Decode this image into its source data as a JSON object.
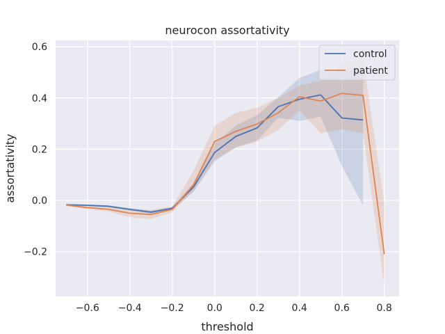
{
  "chart_data": {
    "type": "line",
    "title": "neurocon assortativity",
    "xlabel": "threshold",
    "ylabel": "assortativity",
    "xlim": [
      -0.75,
      0.87
    ],
    "ylim": [
      -0.375,
      0.625
    ],
    "xticks": [
      -0.6,
      -0.4,
      -0.2,
      0.0,
      0.2,
      0.4,
      0.6,
      0.8
    ],
    "xtick_labels": [
      "−0.6",
      "−0.4",
      "−0.2",
      "0.0",
      "0.2",
      "0.4",
      "0.6",
      "0.8"
    ],
    "yticks": [
      -0.2,
      0.0,
      0.2,
      0.4,
      0.6
    ],
    "ytick_labels": [
      "−0.2",
      "0.0",
      "0.2",
      "0.4",
      "0.6"
    ],
    "grid": true,
    "legend_position": "top-right",
    "series": [
      {
        "name": "control",
        "color": "#4c72b0",
        "x": [
          -0.7,
          -0.6,
          -0.5,
          -0.4,
          -0.3,
          -0.2,
          -0.1,
          0.0,
          0.1,
          0.2,
          0.3,
          0.4,
          0.5,
          0.6,
          0.7
        ],
        "y": [
          -0.017,
          -0.019,
          -0.023,
          -0.035,
          -0.046,
          -0.031,
          0.052,
          0.187,
          0.25,
          0.283,
          0.366,
          0.395,
          0.412,
          0.322,
          0.314
        ],
        "ci_low": [
          -0.019,
          -0.022,
          -0.027,
          -0.04,
          -0.052,
          -0.037,
          0.033,
          0.152,
          0.208,
          0.233,
          0.323,
          0.31,
          0.328,
          0.135,
          -0.02
        ],
        "ci_high": [
          -0.015,
          -0.016,
          -0.019,
          -0.03,
          -0.04,
          -0.025,
          0.068,
          0.222,
          0.292,
          0.333,
          0.403,
          0.478,
          0.51,
          0.51,
          0.52
        ]
      },
      {
        "name": "patient",
        "color": "#dd8452",
        "x": [
          -0.7,
          -0.6,
          -0.5,
          -0.4,
          -0.3,
          -0.2,
          -0.1,
          0.0,
          0.1,
          0.2,
          0.3,
          0.4,
          0.5,
          0.6,
          0.7,
          0.8
        ],
        "y": [
          -0.018,
          -0.028,
          -0.035,
          -0.05,
          -0.055,
          -0.035,
          0.06,
          0.23,
          0.27,
          0.298,
          0.342,
          0.405,
          0.388,
          0.418,
          0.41,
          -0.21
        ],
        "ci_low": [
          -0.022,
          -0.034,
          -0.043,
          -0.066,
          -0.073,
          -0.046,
          0.037,
          0.16,
          0.205,
          0.23,
          0.275,
          0.352,
          0.262,
          0.278,
          0.262,
          -0.33
        ],
        "ci_high": [
          -0.014,
          -0.022,
          -0.027,
          -0.034,
          -0.037,
          -0.024,
          0.115,
          0.292,
          0.342,
          0.362,
          0.4,
          0.448,
          0.468,
          0.535,
          0.552,
          -0.01
        ]
      }
    ]
  }
}
